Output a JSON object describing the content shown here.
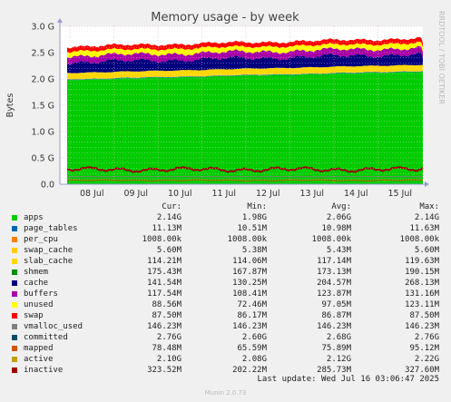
{
  "chart_data": {
    "type": "area",
    "title": "Memory usage - by week",
    "ylabel": "Bytes",
    "xlabel": "",
    "side_label": "RRDTOOL / TOBI OETIKER",
    "ylim": [
      0,
      3.0
    ],
    "y_unit": "G",
    "yticks": [
      "0.0",
      "0.5 G",
      "1.0 G",
      "1.5 G",
      "2.0 G",
      "2.5 G",
      "3.0 G"
    ],
    "xticks": [
      "08 Jul",
      "09 Jul",
      "10 Jul",
      "11 Jul",
      "12 Jul",
      "13 Jul",
      "14 Jul",
      "15 Jul"
    ],
    "grid": true,
    "legend_headers": [
      "Cur:",
      "Min:",
      "Avg:",
      "Max:"
    ],
    "series": [
      {
        "name": "apps",
        "color": "#00cc00",
        "cur": "2.14G",
        "min": "1.98G",
        "avg": "2.06G",
        "max": "2.14G"
      },
      {
        "name": "page_tables",
        "color": "#0066b3",
        "cur": "11.13M",
        "min": "10.51M",
        "avg": "10.98M",
        "max": "11.63M"
      },
      {
        "name": "per_cpu",
        "color": "#ff8000",
        "cur": "1008.00k",
        "min": "1008.00k",
        "avg": "1008.00k",
        "max": "1008.00k"
      },
      {
        "name": "swap_cache",
        "color": "#ffcc00",
        "cur": "5.60M",
        "min": "5.38M",
        "avg": "5.43M",
        "max": "5.60M"
      },
      {
        "name": "slab_cache",
        "color": "#ffd700",
        "cur": "114.21M",
        "min": "114.06M",
        "avg": "117.14M",
        "max": "119.63M"
      },
      {
        "name": "shmem",
        "color": "#008f00",
        "cur": "175.43M",
        "min": "167.87M",
        "avg": "173.13M",
        "max": "190.15M"
      },
      {
        "name": "cache",
        "color": "#00007f",
        "cur": "141.54M",
        "min": "130.25M",
        "avg": "204.57M",
        "max": "268.13M"
      },
      {
        "name": "buffers",
        "color": "#a800a8",
        "cur": "117.54M",
        "min": "108.41M",
        "avg": "123.87M",
        "max": "131.16M"
      },
      {
        "name": "unused",
        "color": "#ffff00",
        "cur": "88.56M",
        "min": "72.46M",
        "avg": "97.05M",
        "max": "123.11M"
      },
      {
        "name": "swap",
        "color": "#ff0000",
        "cur": "87.50M",
        "min": "86.17M",
        "avg": "86.87M",
        "max": "87.50M"
      },
      {
        "name": "vmalloc_used",
        "color": "#808080",
        "cur": "146.23M",
        "min": "146.23M",
        "avg": "146.23M",
        "max": "146.23M"
      },
      {
        "name": "committed",
        "color": "#004d66",
        "cur": "2.76G",
        "min": "2.60G",
        "avg": "2.68G",
        "max": "2.76G"
      },
      {
        "name": "mapped",
        "color": "#cc5500",
        "cur": "78.48M",
        "min": "65.59M",
        "avg": "75.89M",
        "max": "95.12M"
      },
      {
        "name": "active",
        "color": "#c0a000",
        "cur": "2.10G",
        "min": "2.08G",
        "avg": "2.12G",
        "max": "2.22G"
      },
      {
        "name": "inactive",
        "color": "#a00000",
        "cur": "323.52M",
        "min": "202.22M",
        "avg": "285.73M",
        "max": "327.60M"
      }
    ],
    "stack_order": [
      "apps",
      "page_tables",
      "per_cpu",
      "swap_cache",
      "slab_cache",
      "cache",
      "buffers",
      "unused",
      "swap"
    ],
    "line_order": [
      "vmalloc_used",
      "mapped",
      "inactive"
    ]
  },
  "footer": {
    "last_update": "Last update: Wed Jul 16 03:06:47 2025",
    "generator": "Munin 2.0.73"
  }
}
